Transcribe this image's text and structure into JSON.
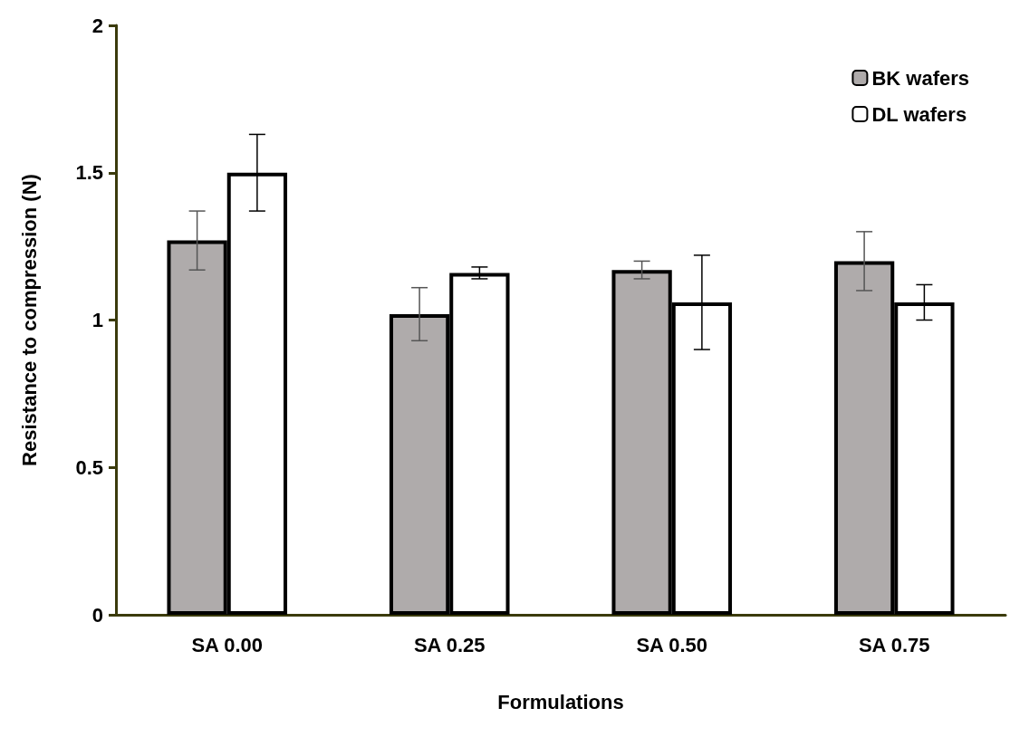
{
  "chart_data": {
    "type": "bar",
    "xlabel": "Formulations",
    "ylabel": "Resistance to compression (N)",
    "categories": [
      "SA 0.00",
      "SA 0.25",
      "SA 0.50",
      "SA 0.75"
    ],
    "series": [
      {
        "name": "BK wafers",
        "color": "#afabab",
        "values": [
          1.27,
          1.02,
          1.17,
          1.2
        ],
        "errors": [
          0.1,
          0.09,
          0.03,
          0.1
        ]
      },
      {
        "name": "DL wafers",
        "color": "#ffffff",
        "values": [
          1.5,
          1.16,
          1.06,
          1.06
        ],
        "errors": [
          0.13,
          0.02,
          0.16,
          0.06
        ]
      }
    ],
    "ylim": [
      0,
      2
    ],
    "yticks": [
      0,
      0.5,
      1,
      1.5,
      2
    ],
    "grid": false,
    "legend": "top right"
  }
}
